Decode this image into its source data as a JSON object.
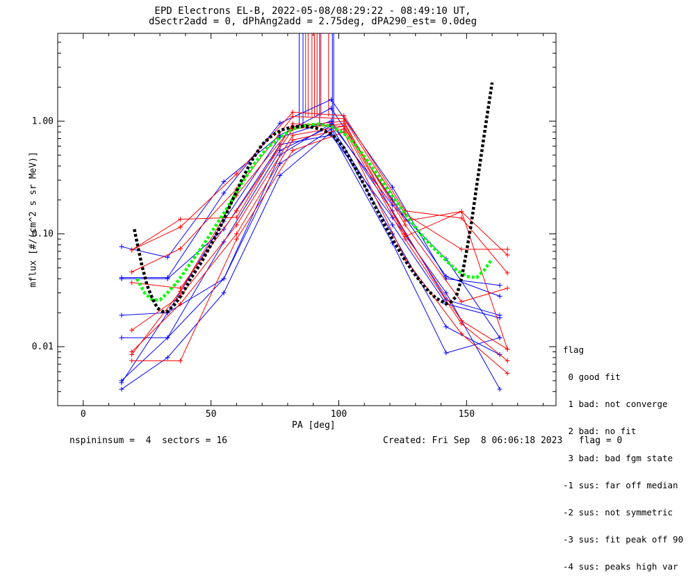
{
  "chart_data": {
    "type": "line",
    "title": "EPD Electrons EL-B, 2022-05-08/08:29:22 - 08:49:10 UT,",
    "subtitle": "dSectr2add = 0, dPhAng2add = 2.75deg, dPA290_est=    0.0deg",
    "xlabel": "PA [deg]",
    "ylabel": "mflux [#/(cm^2 s sr MeV)]",
    "xlim": [
      -10,
      185
    ],
    "ylim": [
      0.003,
      6.0
    ],
    "yscale": "log",
    "xticks": [
      0,
      50,
      100,
      150
    ],
    "xtick_labels": [
      "0",
      "50",
      "100",
      "150"
    ],
    "yticks": [
      0.01,
      0.1,
      1.0
    ],
    "ytick_labels": [
      "0.01",
      "0.10",
      "1.00"
    ],
    "grid": false,
    "series_colors": {
      "blue": "#0000ff",
      "red": "#ff0000",
      "black": "#000000",
      "green": "#00ff00"
    },
    "blue_series": [
      {
        "x": [
          15,
          33,
          55,
          77,
          97,
          121,
          142,
          163
        ],
        "y": [
          0.0042,
          0.008,
          0.03,
          0.33,
          0.8,
          0.083,
          0.0088,
          0.012
        ]
      },
      {
        "x": [
          15,
          33,
          55,
          77,
          97,
          121,
          142,
          163
        ],
        "y": [
          0.005,
          0.012,
          0.04,
          0.42,
          0.85,
          0.1,
          0.015,
          0.0085
        ]
      },
      {
        "x": [
          15,
          33,
          55,
          77,
          97,
          121,
          142,
          163
        ],
        "y": [
          0.012,
          0.012,
          0.085,
          0.55,
          0.9,
          0.12,
          0.024,
          0.018
        ]
      },
      {
        "x": [
          15,
          33,
          55,
          77,
          97,
          121,
          142,
          163
        ],
        "y": [
          0.019,
          0.02,
          0.13,
          0.72,
          1.0,
          0.16,
          0.026,
          0.019
        ]
      },
      {
        "x": [
          15,
          33,
          55,
          77,
          97,
          121,
          142,
          163
        ],
        "y": [
          0.041,
          0.041,
          0.23,
          0.96,
          1.55,
          0.26,
          0.04,
          0.035
        ]
      },
      {
        "x": [
          15,
          33,
          55,
          77,
          97,
          121,
          142,
          163
        ],
        "y": [
          0.077,
          0.062,
          0.29,
          0.75,
          1.3,
          0.2,
          0.042,
          0.028
        ]
      },
      {
        "x": [
          15,
          33,
          55,
          77,
          97,
          121,
          142,
          163
        ],
        "y": [
          0.04,
          0.04,
          0.11,
          0.62,
          0.75,
          0.14,
          0.03,
          0.0042
        ]
      },
      {
        "x": [
          15,
          33,
          55,
          77,
          97,
          121,
          142,
          163
        ],
        "y": [
          0.0048,
          0.02,
          0.04,
          0.5,
          0.95,
          0.18,
          0.06,
          0.012
        ]
      }
    ],
    "red_series": [
      {
        "x": [
          19,
          38,
          60,
          82,
          102,
          126,
          148,
          166
        ],
        "y": [
          0.0075,
          0.0075,
          0.09,
          0.55,
          0.8,
          0.06,
          0.013,
          0.0058
        ]
      },
      {
        "x": [
          19,
          38,
          60,
          82,
          102,
          126,
          148,
          166
        ],
        "y": [
          0.009,
          0.024,
          0.1,
          0.68,
          0.85,
          0.09,
          0.016,
          0.0075
        ]
      },
      {
        "x": [
          19,
          38,
          60,
          82,
          102,
          126,
          148,
          166
        ],
        "y": [
          0.014,
          0.028,
          0.12,
          0.75,
          0.9,
          0.1,
          0.017,
          0.0095
        ]
      },
      {
        "x": [
          19,
          38,
          60,
          82,
          102,
          126,
          148,
          166
        ],
        "y": [
          0.037,
          0.033,
          0.16,
          0.85,
          0.95,
          0.12,
          0.025,
          0.033
        ]
      },
      {
        "x": [
          19,
          38,
          60,
          82,
          102,
          126,
          148,
          166
        ],
        "y": [
          0.046,
          0.074,
          0.25,
          1.1,
          1.05,
          0.15,
          0.073,
          0.073
        ]
      },
      {
        "x": [
          19,
          38,
          60,
          82,
          102,
          126,
          148,
          166
        ],
        "y": [
          0.072,
          0.115,
          0.34,
          1.2,
          1.12,
          0.16,
          0.138,
          0.045
        ]
      },
      {
        "x": [
          19,
          38,
          60,
          82,
          102,
          126,
          148,
          166
        ],
        "y": [
          0.072,
          0.135,
          0.14,
          0.95,
          0.9,
          0.13,
          0.158,
          0.065
        ]
      },
      {
        "x": [
          19,
          38,
          60,
          82,
          102,
          126,
          148,
          166
        ],
        "y": [
          0.0085,
          0.031,
          0.22,
          0.9,
          1.0,
          0.095,
          0.158,
          0.0095
        ]
      }
    ],
    "black_fit": {
      "x": [
        20,
        21,
        23,
        25,
        27,
        29,
        31,
        33,
        36,
        39,
        42,
        46,
        50,
        54,
        58,
        62,
        66,
        70,
        74,
        78,
        82,
        86,
        90,
        94,
        98,
        102,
        106,
        110,
        114,
        118,
        122,
        126,
        130,
        134,
        138,
        142,
        144,
        146,
        148,
        150,
        152,
        154,
        156,
        158,
        160
      ],
      "y": [
        0.11,
        0.085,
        0.052,
        0.035,
        0.027,
        0.022,
        0.0205,
        0.0205,
        0.024,
        0.03,
        0.04,
        0.055,
        0.08,
        0.12,
        0.19,
        0.3,
        0.45,
        0.62,
        0.75,
        0.84,
        0.89,
        0.9,
        0.88,
        0.83,
        0.74,
        0.58,
        0.4,
        0.27,
        0.18,
        0.12,
        0.082,
        0.058,
        0.043,
        0.033,
        0.027,
        0.024,
        0.025,
        0.028,
        0.04,
        0.07,
        0.13,
        0.27,
        0.55,
        1.1,
        2.2
      ]
    },
    "green_fit": {
      "x": [
        21,
        24,
        27,
        30,
        33,
        37,
        42,
        47,
        52,
        57,
        62,
        67,
        72,
        77,
        82,
        87,
        92,
        97,
        102,
        107,
        112,
        117,
        122,
        127,
        132,
        137,
        142,
        146,
        150,
        154,
        157,
        160
      ],
      "y": [
        0.04,
        0.03,
        0.026,
        0.026,
        0.03,
        0.038,
        0.055,
        0.08,
        0.12,
        0.18,
        0.28,
        0.42,
        0.58,
        0.72,
        0.85,
        0.92,
        0.94,
        0.9,
        0.78,
        0.6,
        0.42,
        0.29,
        0.2,
        0.14,
        0.1,
        0.075,
        0.058,
        0.048,
        0.042,
        0.041,
        0.048,
        0.06
      ]
    },
    "spike_lines": {
      "blue_x": [
        84.5,
        86,
        92.5,
        97.5,
        98
      ],
      "red_x": [
        87,
        88,
        89.5,
        90.5,
        91.5,
        93,
        96
      ]
    },
    "legend": {
      "title": "flag",
      "items": [
        " 0 good fit",
        " 1 bad: not converge",
        " 2 bad: no fit",
        " 3 bad: bad fgm state",
        "-1 sus: far off median",
        "-2 sus: not symmetric",
        "-3 sus: fit peak off 90",
        "-4 sus: peaks high var"
      ]
    }
  },
  "footer": {
    "left": "nspininsum =  4  sectors = 16",
    "right": "Created: Fri Sep  8 06:06:18 2023   flag = 0"
  }
}
